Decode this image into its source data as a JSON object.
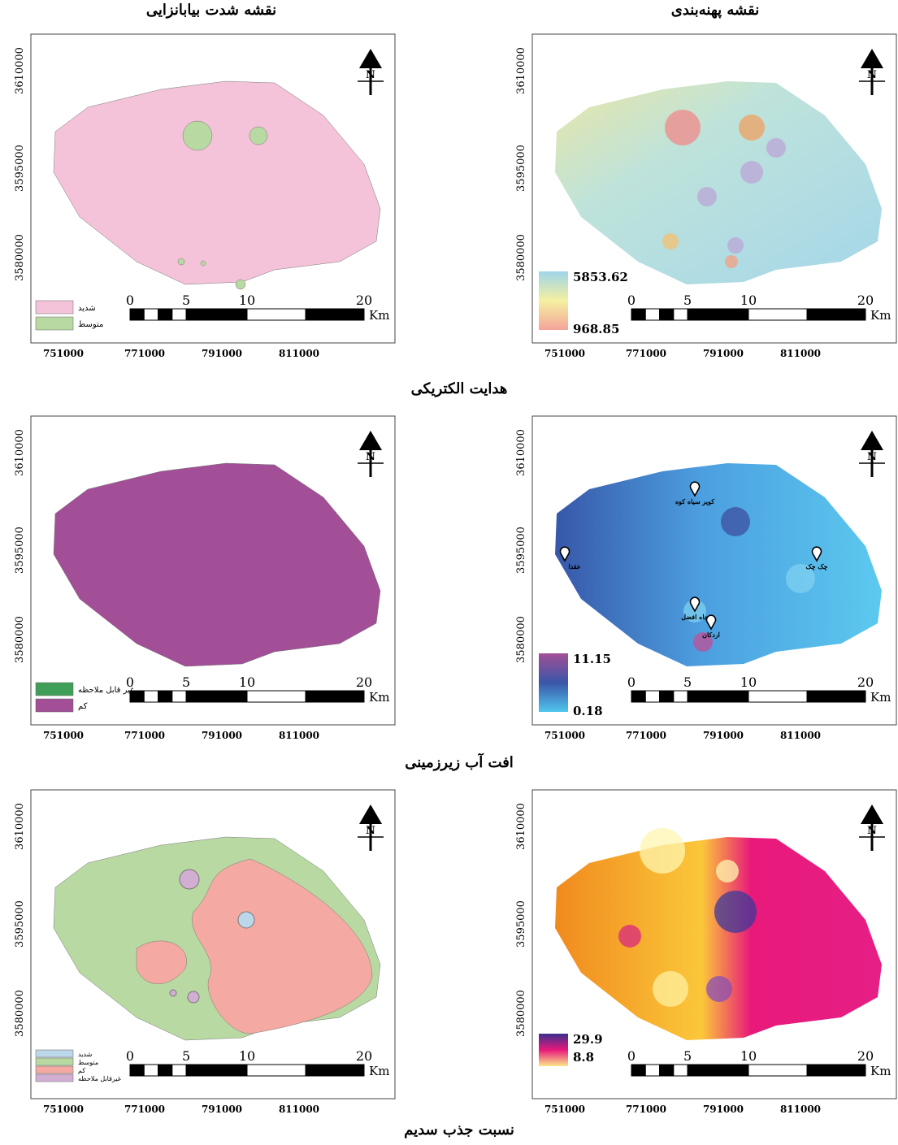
{
  "column_titles": [
    "نقشه شدت بیابانزایی",
    "نقشه پهنه‌بندی"
  ],
  "axes": {
    "y_labels": [
      "3610000",
      "3595000",
      "3580000"
    ],
    "x_labels": [
      "751000",
      "771000",
      "791000",
      "811000"
    ]
  },
  "north": "N",
  "scale_bar": {
    "labels": [
      "0",
      "5",
      "10",
      "20"
    ],
    "unit": "Km"
  },
  "rows": [
    {
      "caption": "هدایت الکتریکی",
      "severity_legend": [
        {
          "label": "شدید",
          "color": "#f4c3d9"
        },
        {
          "label": "متوسط",
          "color": "#b8d9a2"
        }
      ],
      "zoning_legend": {
        "max": 5853.62,
        "min": 968.85,
        "colors": [
          "#9fd5ea",
          "#f4f0a0",
          "#f4a49a"
        ]
      }
    },
    {
      "caption": "افت آب زیرزمینی",
      "severity_legend": [
        {
          "label": "غیر قابل ملاحظه",
          "color": "#3f9e57"
        },
        {
          "label": "کم",
          "color": "#a24f97"
        }
      ],
      "zoning_legend": {
        "max": 11.15,
        "min": 0.18,
        "colors": [
          "#a24f97",
          "#3a56a8",
          "#4fc6ee"
        ]
      },
      "places": [
        "کویر سیاه کوه",
        "عقدا",
        "چک چک",
        "چاه افضل",
        "اردکان"
      ]
    },
    {
      "caption": "نسبت جذب سدیم",
      "severity_legend": [
        {
          "label": "شدید",
          "color": "#bcd7ea"
        },
        {
          "label": "متوسط",
          "color": "#b8d9a2"
        },
        {
          "label": "کم",
          "color": "#f4aaa2"
        },
        {
          "label": "غیرقابل ملاحظه",
          "color": "#d3aed3"
        }
      ],
      "zoning_legend": {
        "max": 29.9,
        "min": 8.8,
        "colors": [
          "#3a2f8f",
          "#e8197a",
          "#fbe88a"
        ]
      }
    }
  ]
}
